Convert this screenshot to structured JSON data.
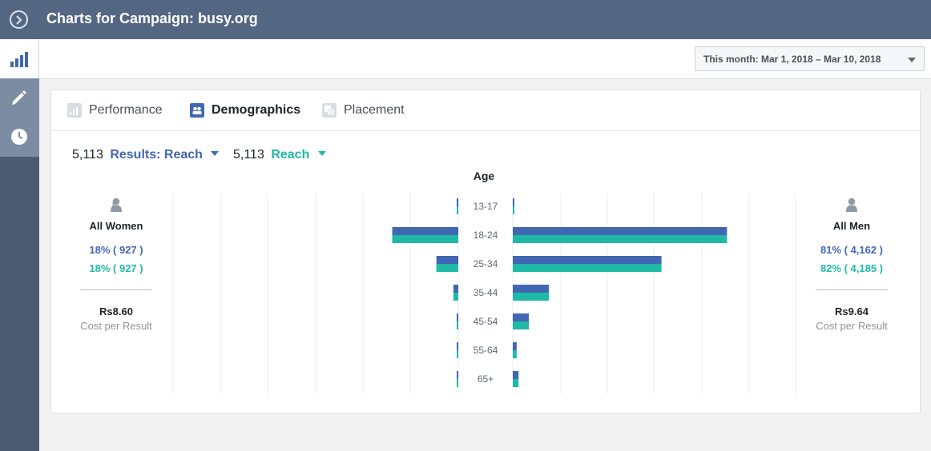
{
  "header": {
    "title": "Charts for Campaign: busy.org"
  },
  "toolbar": {
    "date_range": "This month: Mar 1, 2018 – Mar 10, 2018"
  },
  "tabs": [
    {
      "label": "Performance",
      "icon": "bar-chart-icon"
    },
    {
      "label": "Demographics",
      "icon": "people-icon"
    },
    {
      "label": "Placement",
      "icon": "placement-icon"
    }
  ],
  "metrics": {
    "primary": {
      "value": "5,113",
      "label": "Results: Reach",
      "color": "#4267b2"
    },
    "secondary": {
      "value": "5,113",
      "label": "Reach",
      "color": "#1fbaa6"
    }
  },
  "women": {
    "label": "All Women",
    "pct_primary": "18% ( 927 )",
    "pct_secondary": "18% ( 927 )",
    "cost": "Rs8.60",
    "cost_label": "Cost per Result"
  },
  "men": {
    "label": "All Men",
    "pct_primary": "81% ( 4,162 )",
    "pct_secondary": "82% ( 4,185 )",
    "cost": "Rs9.64",
    "cost_label": "Cost per Result"
  },
  "chart_data": {
    "type": "bar",
    "title": "Age",
    "categories": [
      "13-17",
      "18-24",
      "25-34",
      "35-44",
      "45-54",
      "55-64",
      "65+"
    ],
    "series": [
      {
        "name": "Results: Reach - Women",
        "color": "#4267b2",
        "values": [
          4,
          513,
          170,
          38,
          3,
          3,
          9
        ]
      },
      {
        "name": "Reach - Women",
        "color": "#1fbaa6",
        "values": [
          4,
          513,
          170,
          38,
          3,
          3,
          9
        ]
      },
      {
        "name": "Results: Reach - Men",
        "color": "#4267b2",
        "values": [
          4,
          1664,
          1155,
          280,
          125,
          30,
          45
        ]
      },
      {
        "name": "Reach - Men",
        "color": "#1fbaa6",
        "values": [
          4,
          1664,
          1155,
          280,
          125,
          30,
          45
        ]
      }
    ],
    "xlim": [
      0,
      1840
    ]
  }
}
